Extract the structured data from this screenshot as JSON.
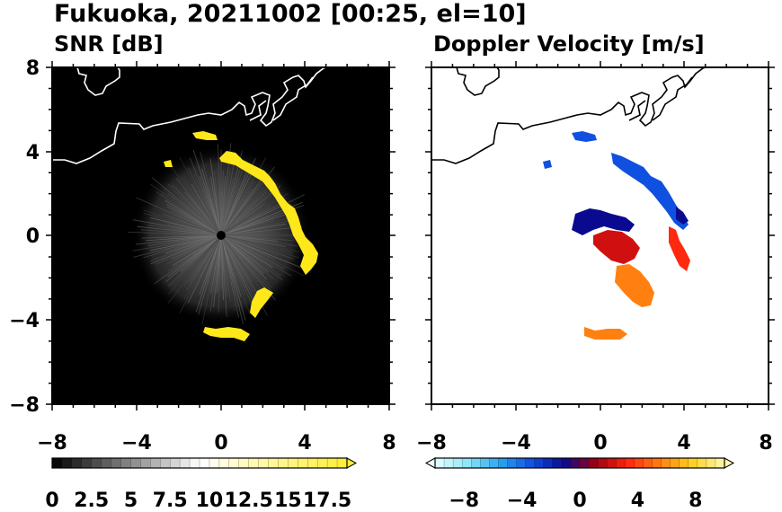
{
  "figure": {
    "main_title": "Fukuoka, 20211002 [00:25, el=10]"
  },
  "chart_data": [
    {
      "type": "heatmap",
      "title": "SNR [dB]",
      "xlabel": "",
      "ylabel": "",
      "xlim": [
        -8,
        8
      ],
      "ylim": [
        -8,
        8
      ],
      "xticks": [
        "−8",
        "−4",
        "0",
        "4",
        "8"
      ],
      "yticks": [
        "8",
        "4",
        "0",
        "−4",
        "−8"
      ],
      "background_color": "#000000",
      "colorbar": {
        "min": 0,
        "max": 18.75,
        "levels": 30,
        "extend": "max",
        "tick_labels": [
          "0",
          "2.5",
          "5",
          "7.5",
          "10",
          "12.5",
          "15",
          "17.5"
        ],
        "tick_values": [
          0,
          2.5,
          5,
          7.5,
          10,
          12.5,
          15,
          17.5
        ],
        "colors": [
          "#000000",
          "#ffffff",
          "#ffee33"
        ]
      },
      "features": [
        {
          "name": "coastline",
          "color": "#ffffff"
        },
        {
          "name": "echo-band",
          "value": 18,
          "color": "#ffe81a"
        }
      ]
    },
    {
      "type": "heatmap",
      "title": "Doppler Velocity [m/s]",
      "xlabel": "",
      "ylabel": "",
      "xlim": [
        -8,
        8
      ],
      "ylim": [
        -8,
        8
      ],
      "xticks": [
        "−8",
        "−4",
        "0",
        "4",
        "8"
      ],
      "yticks": [],
      "background_color": "#ffffff",
      "colorbar": {
        "min": -10,
        "max": 10,
        "levels": 32,
        "extend": "both",
        "tick_labels": [
          "−8",
          "−4",
          "0",
          "4",
          "8"
        ],
        "tick_values": [
          -8,
          -4,
          0,
          4,
          8
        ],
        "colors": [
          "#e6ffff",
          "#8fe6f5",
          "#2aa6f0",
          "#1050e0",
          "#0a0a90",
          "#a00010",
          "#ff2810",
          "#ff8010",
          "#ffd020",
          "#fff8b0"
        ]
      },
      "features": [
        {
          "name": "coastline",
          "color": "#000000"
        }
      ]
    }
  ]
}
